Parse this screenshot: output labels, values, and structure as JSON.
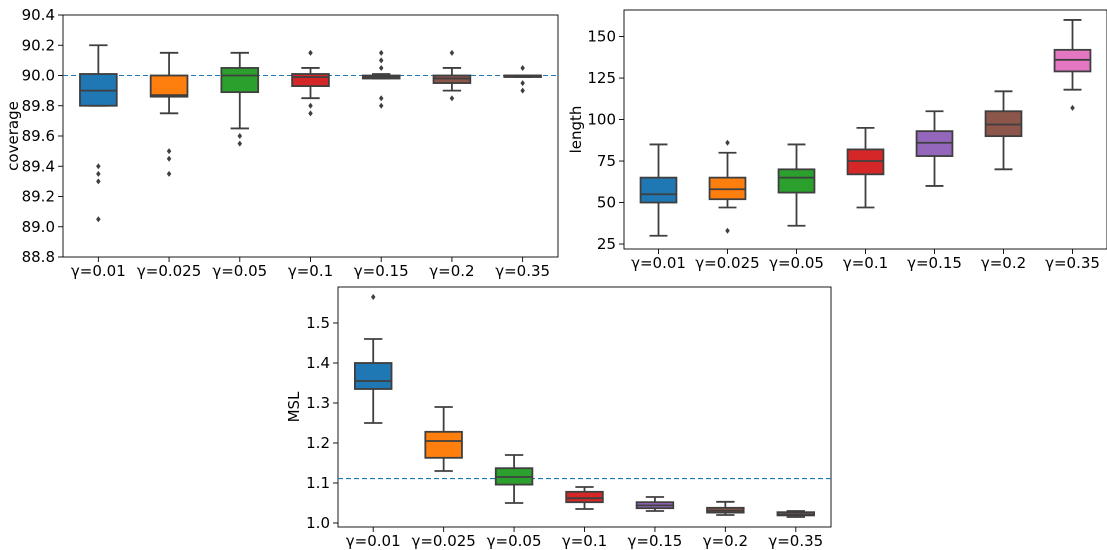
{
  "chart_data": [
    {
      "type": "box",
      "panel": "coverage",
      "xlabel": "",
      "ylabel": "coverage",
      "ylim": [
        88.8,
        90.4
      ],
      "yticks": [
        "88.8",
        "89.0",
        "89.2",
        "89.4",
        "89.6",
        "89.8",
        "90.0",
        "90.2",
        "90.4"
      ],
      "ytick_values": [
        88.8,
        89.0,
        89.2,
        89.4,
        89.6,
        89.8,
        90.0,
        90.2,
        90.4
      ],
      "categories": [
        "γ=0.01",
        "γ=0.025",
        "γ=0.05",
        "γ=0.1",
        "γ=0.15",
        "γ=0.2",
        "γ=0.35"
      ],
      "reference_line": 90.0,
      "grid": false,
      "boxes": [
        {
          "whislo": 89.8,
          "q1": 89.8,
          "med": 89.9,
          "q3": 90.01,
          "whishi": 90.2,
          "fliers": [
            89.4,
            89.35,
            89.3,
            89.05
          ]
        },
        {
          "whislo": 89.75,
          "q1": 89.86,
          "med": 89.87,
          "q3": 90.0,
          "whishi": 90.15,
          "fliers": [
            89.5,
            89.45,
            89.35
          ]
        },
        {
          "whislo": 89.65,
          "q1": 89.89,
          "med": 90.0,
          "q3": 90.05,
          "whishi": 90.15,
          "fliers": [
            89.6,
            89.55
          ]
        },
        {
          "whislo": 89.85,
          "q1": 89.93,
          "med": 89.99,
          "q3": 90.01,
          "whishi": 90.05,
          "fliers": [
            90.15,
            89.8,
            89.75
          ]
        },
        {
          "whislo": 89.98,
          "q1": 89.98,
          "med": 89.99,
          "q3": 90.0,
          "whishi": 90.01,
          "fliers": [
            90.15,
            90.1,
            90.05,
            89.85,
            89.8
          ]
        },
        {
          "whislo": 89.9,
          "q1": 89.95,
          "med": 89.98,
          "q3": 90.0,
          "whishi": 90.05,
          "fliers": [
            90.15,
            89.85
          ]
        },
        {
          "whislo": 89.99,
          "q1": 89.99,
          "med": 90.0,
          "q3": 90.0,
          "whishi": 90.0,
          "fliers": [
            90.05,
            89.95,
            89.9
          ]
        }
      ]
    },
    {
      "type": "box",
      "panel": "length",
      "xlabel": "",
      "ylabel": "length",
      "ylim": [
        22,
        166
      ],
      "yticks": [
        "25",
        "50",
        "75",
        "100",
        "125",
        "150"
      ],
      "ytick_values": [
        25,
        50,
        75,
        100,
        125,
        150
      ],
      "categories": [
        "γ=0.01",
        "γ=0.025",
        "γ=0.05",
        "γ=0.1",
        "γ=0.15",
        "γ=0.2",
        "γ=0.35"
      ],
      "grid": false,
      "boxes": [
        {
          "whislo": 30,
          "q1": 50,
          "med": 55,
          "q3": 65,
          "whishi": 85,
          "fliers": []
        },
        {
          "whislo": 47,
          "q1": 52,
          "med": 58,
          "q3": 65,
          "whishi": 80,
          "fliers": [
            86,
            33
          ]
        },
        {
          "whislo": 36,
          "q1": 56,
          "med": 65,
          "q3": 70,
          "whishi": 85,
          "fliers": []
        },
        {
          "whislo": 47,
          "q1": 67,
          "med": 75,
          "q3": 82,
          "whishi": 95,
          "fliers": []
        },
        {
          "whislo": 60,
          "q1": 78,
          "med": 86,
          "q3": 93,
          "whishi": 105,
          "fliers": []
        },
        {
          "whislo": 70,
          "q1": 90,
          "med": 97,
          "q3": 105,
          "whishi": 117,
          "fliers": []
        },
        {
          "whislo": 118,
          "q1": 129,
          "med": 136,
          "q3": 142,
          "whishi": 160,
          "fliers": [
            107
          ]
        }
      ]
    },
    {
      "type": "box",
      "panel": "MSL",
      "xlabel": "",
      "ylabel": "MSL",
      "ylim": [
        0.99,
        1.59
      ],
      "yticks": [
        "1.0",
        "1.1",
        "1.2",
        "1.3",
        "1.4",
        "1.5"
      ],
      "ytick_values": [
        1.0,
        1.1,
        1.2,
        1.3,
        1.4,
        1.5
      ],
      "categories": [
        "γ=0.01",
        "γ=0.025",
        "γ=0.05",
        "γ=0.1",
        "γ=0.15",
        "γ=0.2",
        "γ=0.35"
      ],
      "reference_line": 1.111,
      "grid": false,
      "boxes": [
        {
          "whislo": 1.25,
          "q1": 1.335,
          "med": 1.355,
          "q3": 1.4,
          "whishi": 1.46,
          "fliers": [
            1.565
          ]
        },
        {
          "whislo": 1.13,
          "q1": 1.163,
          "med": 1.205,
          "q3": 1.228,
          "whishi": 1.29,
          "fliers": []
        },
        {
          "whislo": 1.05,
          "q1": 1.096,
          "med": 1.115,
          "q3": 1.137,
          "whishi": 1.17,
          "fliers": []
        },
        {
          "whislo": 1.035,
          "q1": 1.052,
          "med": 1.062,
          "q3": 1.078,
          "whishi": 1.09,
          "fliers": []
        },
        {
          "whislo": 1.03,
          "q1": 1.037,
          "med": 1.044,
          "q3": 1.052,
          "whishi": 1.065,
          "fliers": []
        },
        {
          "whislo": 1.02,
          "q1": 1.026,
          "med": 1.031,
          "q3": 1.038,
          "whishi": 1.053,
          "fliers": []
        },
        {
          "whislo": 1.015,
          "q1": 1.019,
          "med": 1.022,
          "q3": 1.027,
          "whishi": 1.03,
          "fliers": []
        }
      ]
    }
  ],
  "palette": [
    "#1f77b4",
    "#ff7f0e",
    "#2ca02c",
    "#d62728",
    "#9467bd",
    "#8c564b",
    "#e377c2"
  ],
  "reference_line_color": "#1f77b4"
}
